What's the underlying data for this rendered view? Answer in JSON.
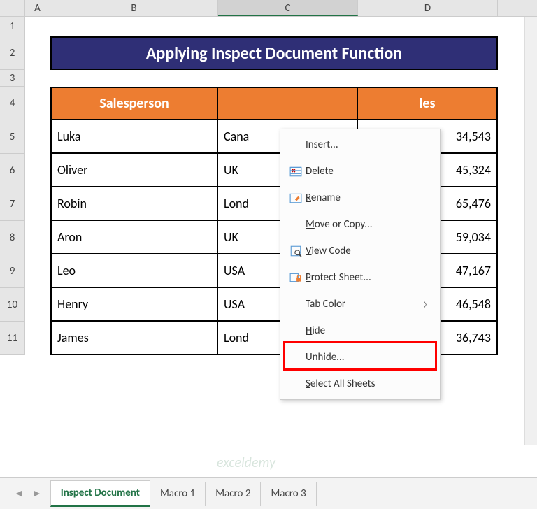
{
  "columns": {
    "A": "A",
    "B": "B",
    "C": "C",
    "D": "D"
  },
  "rows": [
    "1",
    "2",
    "3",
    "4",
    "5",
    "6",
    "7",
    "8",
    "9",
    "10",
    "11"
  ],
  "title": "Applying Inspect Document Function",
  "headers": {
    "salesperson": "Salesperson",
    "sales": "les"
  },
  "data": [
    {
      "name": "Luka",
      "country": "Cana",
      "sales": "34,543"
    },
    {
      "name": "Oliver",
      "country": "UK",
      "sales": "45,324"
    },
    {
      "name": "Robin",
      "country": "Lond",
      "sales": "65,476"
    },
    {
      "name": "Aron",
      "country": "UK",
      "sales": "59,034"
    },
    {
      "name": "Leo",
      "country": "USA",
      "sales": "47,167"
    },
    {
      "name": "Henry",
      "country": "USA",
      "sales": "46,548"
    },
    {
      "name": "James",
      "country": "Lond",
      "sales": "36,743"
    }
  ],
  "menu": {
    "insert": "Insert...",
    "delete": "Delete",
    "rename": "Rename",
    "move": "Move or Copy...",
    "view_code": "View Code",
    "protect": "Protect Sheet...",
    "tab_color": "Tab Color",
    "hide": "Hide",
    "unhide": "Unhide...",
    "select_all": "Select All Sheets"
  },
  "tabs": {
    "active": "Inspect Document",
    "t2": "Macro 1",
    "t3": "Macro 2",
    "t4": "Macro 3"
  },
  "colors": {
    "banner_bg": "#2f2f76",
    "header_bg": "#ed7d31",
    "accent": "#217346",
    "highlight": "#ff0000"
  },
  "watermark": "exceldemy"
}
